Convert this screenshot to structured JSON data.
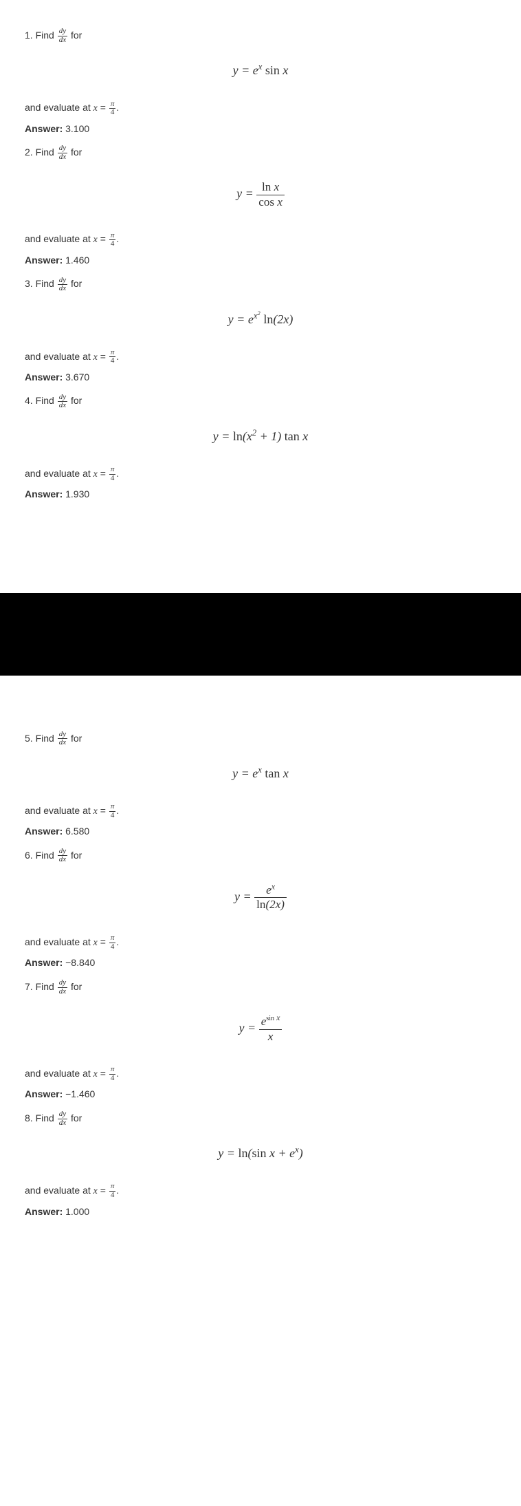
{
  "problems": [
    {
      "num": "1",
      "findText": "Find",
      "forText": "for",
      "formula_html": "<span class='it'>y</span> = <span class='it'>e</span><sup><span class='it'>x</span></sup> <span class='upright'>sin</span> <span class='it'>x</span>",
      "evalText": "and evaluate at",
      "answerLabel": "Answer:",
      "answerValue": "3.100"
    },
    {
      "num": "2",
      "findText": "Find",
      "forText": "for",
      "formula_html": "<span class='it'>y</span> = <span class='frac'><span class='num'><span class='upright'>ln</span> <span class='it'>x</span></span><span class='den'><span class='upright'>cos</span> <span class='it'>x</span></span></span>",
      "evalText": "and evaluate at",
      "answerLabel": "Answer:",
      "answerValue": "1.460"
    },
    {
      "num": "3",
      "findText": "Find",
      "forText": "for",
      "formula_html": "<span class='it'>y</span> = <span class='it'>e</span><sup><span class='it'>x</span><sup>2</sup></sup> <span class='upright'>ln</span>(2<span class='it'>x</span>)",
      "evalText": "and evaluate at",
      "answerLabel": "Answer:",
      "answerValue": "3.670"
    },
    {
      "num": "4",
      "findText": "Find",
      "forText": "for",
      "formula_html": "<span class='it'>y</span> = <span class='upright'>ln</span>(<span class='it'>x</span><sup>2</sup> + 1) <span class='upright'>tan</span> <span class='it'>x</span>",
      "evalText": "and evaluate at",
      "answerLabel": "Answer:",
      "answerValue": "1.930"
    },
    {
      "num": "5",
      "findText": "Find",
      "forText": "for",
      "formula_html": "<span class='it'>y</span> = <span class='it'>e</span><sup><span class='it'>x</span></sup> <span class='upright'>tan</span> <span class='it'>x</span>",
      "evalText": "and evaluate at",
      "answerLabel": "Answer:",
      "answerValue": "6.580"
    },
    {
      "num": "6",
      "findText": "Find",
      "forText": "for",
      "formula_html": "<span class='it'>y</span> = <span class='frac'><span class='num'><span class='it'>e</span><sup><span class='it'>x</span></sup></span><span class='den'><span class='upright'>ln</span>(2<span class='it'>x</span>)</span></span>",
      "evalText": "and evaluate at",
      "answerLabel": "Answer:",
      "answerValue": "−8.840"
    },
    {
      "num": "7",
      "findText": "Find",
      "forText": "for",
      "formula_html": "<span class='it'>y</span> = <span class='frac'><span class='num'><span class='it'>e</span><sup><span class='upright' style='font-size:0.85em'>sin</span> <span class='it'>x</span></sup></span><span class='den'><span class='it'>x</span></span></span>",
      "evalText": "and evaluate at",
      "answerLabel": "Answer:",
      "answerValue": "−1.460"
    },
    {
      "num": "8",
      "findText": "Find",
      "forText": "for",
      "formula_html": "<span class='it'>y</span> = <span class='upright'>ln</span>(<span class='upright'>sin</span> <span class='it'>x</span> + <span class='it'>e</span><sup><span class='it'>x</span></sup>)",
      "evalText": "and evaluate at",
      "answerLabel": "Answer:",
      "answerValue": "1.000"
    }
  ],
  "dydx": {
    "num": "dy",
    "den": "dx"
  },
  "pi4": {
    "num": "π",
    "den": "4"
  },
  "xVar": "x",
  "equals": "="
}
